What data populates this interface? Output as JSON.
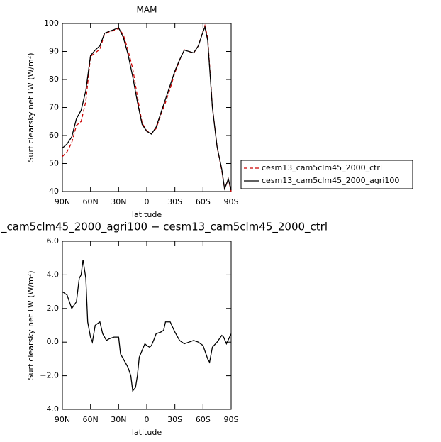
{
  "chart_data": [
    {
      "type": "line",
      "title": "MAM",
      "xlabel": "latitude",
      "ylabel": "Surf clearsky net LW (W/m²)",
      "xlim": [
        90,
        -90
      ],
      "xticks": [
        {
          "value": 90,
          "label": "90N"
        },
        {
          "value": 60,
          "label": "60N"
        },
        {
          "value": 30,
          "label": "30N"
        },
        0,
        {
          "value": -30,
          "label": "30S"
        },
        {
          "value": -60,
          "label": "60S"
        },
        {
          "value": -90,
          "label": "90S"
        }
      ],
      "ylim": [
        40,
        100
      ],
      "yticks": [
        40,
        50,
        60,
        70,
        80,
        90,
        100
      ],
      "legend": "outside-right",
      "x": [
        90,
        85,
        80,
        75,
        70,
        65,
        60,
        55,
        50,
        45,
        40,
        35,
        30,
        25,
        20,
        15,
        10,
        5,
        0,
        -5,
        -10,
        -15,
        -20,
        -25,
        -30,
        -35,
        -40,
        -45,
        -50,
        -55,
        -60,
        -62,
        -65,
        -70,
        -75,
        -80,
        -83,
        -87,
        -90
      ],
      "series": [
        {
          "name": "cesm13_cam5clm45_2000_ctrl",
          "color": "#cc0000",
          "dash": "dashed",
          "values": [
            52.5,
            54.2,
            57.5,
            63.6,
            65,
            72.2,
            88.2,
            89.5,
            90.8,
            96.2,
            97,
            97.5,
            98.2,
            96,
            90.5,
            83.9,
            74,
            64.5,
            61.7,
            60.7,
            62.5,
            67.4,
            71.8,
            76.8,
            82.4,
            86.9,
            90.6,
            90,
            89.4,
            92,
            97.2,
            99.2,
            95,
            70.3,
            56,
            47.6,
            40.8,
            44.5,
            40
          ]
        },
        {
          "name": "cesm13_cam5clm45_2000_agri100",
          "color": "#000000",
          "dash": "solid",
          "values": [
            55.5,
            57,
            59.5,
            66,
            69,
            76,
            88.5,
            90.5,
            92,
            96.5,
            97.2,
            97.8,
            98.5,
            95,
            89,
            81,
            72,
            64,
            61.5,
            60.5,
            63,
            68,
            73,
            78,
            83,
            87,
            90.5,
            90,
            89.5,
            92,
            97,
            98.7,
            94,
            70,
            56,
            48,
            41,
            44.5,
            40.5
          ]
        }
      ]
    },
    {
      "type": "line",
      "title": "_cam5clm45_2000_agri100 − cesm13_cam5clm45_2000_ctrl",
      "xlabel": "latitude",
      "ylabel": "Surf clearsky net LW (W/m²)",
      "xlim": [
        90,
        -90
      ],
      "xticks": [
        {
          "value": 90,
          "label": "90N"
        },
        {
          "value": 60,
          "label": "60N"
        },
        {
          "value": 30,
          "label": "30N"
        },
        0,
        {
          "value": -30,
          "label": "30S"
        },
        {
          "value": -60,
          "label": "60S"
        },
        {
          "value": -90,
          "label": "90S"
        }
      ],
      "ylim": [
        -4,
        6
      ],
      "yticks": [
        {
          "value": -4,
          "label": "−4.0"
        },
        {
          "value": -2,
          "label": "−2.0"
        },
        {
          "value": 0,
          "label": "0.0"
        },
        {
          "value": 2,
          "label": "2.0"
        },
        {
          "value": 4,
          "label": "4.0"
        },
        {
          "value": 6,
          "label": "6.0"
        }
      ],
      "x": [
        90,
        85,
        80,
        75,
        72,
        70,
        68,
        65,
        63,
        60,
        58,
        55,
        50,
        47,
        43,
        40,
        35,
        30,
        28,
        25,
        20,
        17,
        15,
        12,
        10,
        8,
        5,
        2,
        0,
        -3,
        -5,
        -8,
        -10,
        -15,
        -18,
        -20,
        -25,
        -30,
        -35,
        -40,
        -45,
        -50,
        -55,
        -60,
        -65,
        -67,
        -70,
        -75,
        -80,
        -82,
        -85,
        -90
      ],
      "series": [
        {
          "color": "#000000",
          "dash": "solid",
          "values": [
            3.0,
            2.8,
            2.0,
            2.4,
            3.8,
            4.0,
            4.9,
            3.8,
            1.2,
            0.3,
            0.0,
            1.0,
            1.2,
            0.5,
            0.1,
            0.2,
            0.3,
            0.3,
            -0.7,
            -1.0,
            -1.5,
            -2.0,
            -2.9,
            -2.7,
            -2.0,
            -0.9,
            -0.5,
            -0.1,
            -0.2,
            -0.3,
            -0.2,
            0.2,
            0.5,
            0.6,
            0.7,
            1.2,
            1.2,
            0.6,
            0.1,
            -0.1,
            0.0,
            0.1,
            0.0,
            -0.2,
            -1.0,
            -1.2,
            -0.3,
            0.0,
            0.4,
            0.3,
            -0.1,
            0.5
          ]
        }
      ]
    }
  ]
}
